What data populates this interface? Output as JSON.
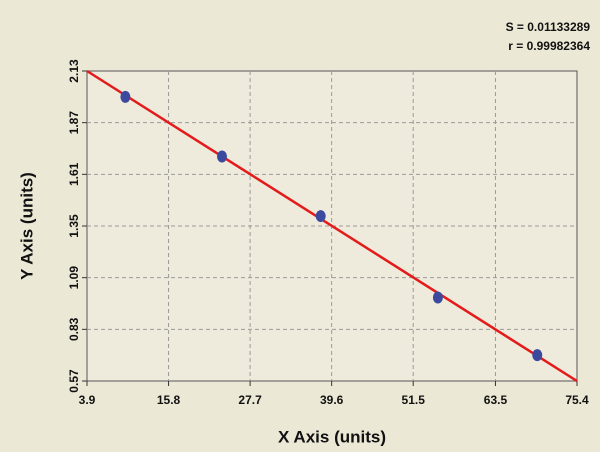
{
  "chart_data": {
    "type": "scatter",
    "annotations": [
      "S = 0.01133289",
      "r = 0.99982364"
    ],
    "x_label": "X Axis (units)",
    "y_label": "Y Axis (units)",
    "x": [
      9.5,
      23.6,
      38.0,
      55.1,
      69.6
    ],
    "values": [
      2.0,
      1.7,
      1.4,
      0.99,
      0.7
    ],
    "color": "#3b4a9e",
    "fit": {
      "x": [
        3.9,
        75.4
      ],
      "values": [
        2.13,
        0.57
      ],
      "color": "#e31b1b"
    },
    "xlim": [
      3.9,
      75.4
    ],
    "ylim": [
      0.57,
      2.13
    ],
    "xticks": [
      3.9,
      15.8,
      27.7,
      39.6,
      51.5,
      63.5,
      75.4
    ],
    "yticks": [
      0.57,
      0.83,
      1.09,
      1.35,
      1.61,
      1.87,
      2.13
    ],
    "grid": true
  }
}
